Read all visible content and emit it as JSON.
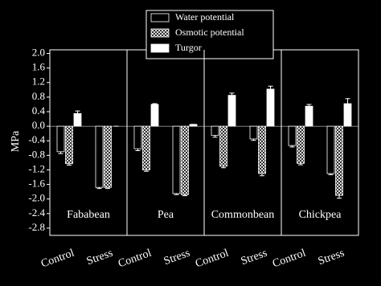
{
  "chart_data": {
    "type": "bar",
    "y_label": "MPa",
    "groups": [
      "Fababean",
      "Pea",
      "Commonbean",
      "Chickpea"
    ],
    "categories": [
      "Control",
      "Stress",
      "Control",
      "Stress",
      "Control",
      "Stress",
      "Control",
      "Stress"
    ],
    "series": [
      {
        "name": "Water potential",
        "color": "#000000",
        "values": [
          -0.7,
          -1.68,
          -0.62,
          -1.85,
          -0.25,
          -0.35,
          -0.53,
          -1.3
        ],
        "errors": [
          0.05,
          0.03,
          0.05,
          0.03,
          0.05,
          0.04,
          0.04,
          0.03
        ]
      },
      {
        "name": "Osmotic potential",
        "color": "#ffffff",
        "fill": "crosshatch",
        "values": [
          -1.03,
          -1.68,
          -1.2,
          -1.88,
          -1.1,
          -1.3,
          -1.02,
          -1.9
        ],
        "errors": [
          0.04,
          0.03,
          0.04,
          0.03,
          0.04,
          0.06,
          0.04,
          0.08
        ]
      },
      {
        "name": "Turgor",
        "color": "#ffffff",
        "values": [
          0.35,
          0.0,
          0.6,
          0.05,
          0.85,
          1.02,
          0.55,
          0.62
        ],
        "errors": [
          0.07,
          0.0,
          0.02,
          0.0,
          0.06,
          0.08,
          0.05,
          0.14
        ]
      }
    ],
    "ylim": [
      -3.0,
      2.1
    ],
    "yticks": [
      {
        "value": 2.0,
        "label": "2.0"
      },
      {
        "value": 1.6,
        "label": "1.6"
      },
      {
        "value": 1.2,
        "label": "1.2"
      },
      {
        "value": 0.8,
        "label": "0.8"
      },
      {
        "value": 0.4,
        "label": "0.4"
      },
      {
        "value": 0.0,
        "label": "0.0"
      },
      {
        "value": -0.4,
        "label": "-0.4"
      },
      {
        "value": -0.8,
        "label": "-0.8"
      },
      {
        "value": -1.2,
        "label": "-1.2"
      },
      {
        "value": -1.6,
        "label": "-1.6"
      },
      {
        "value": -2.0,
        "label": "-2.0"
      },
      {
        "value": -2.4,
        "label": "-2.4"
      },
      {
        "value": -2.8,
        "label": "-2.8"
      }
    ]
  }
}
